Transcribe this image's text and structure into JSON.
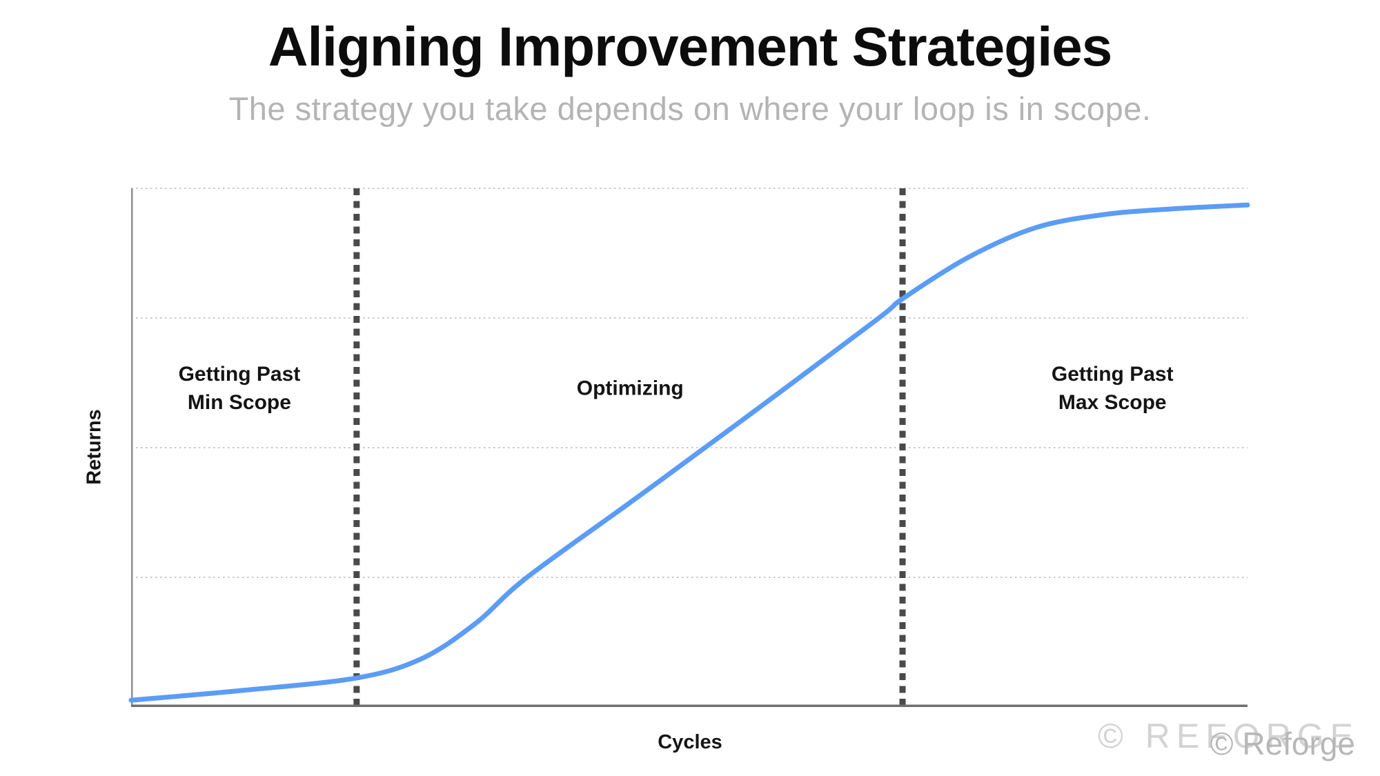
{
  "slide": {
    "title": "Aligning Improvement Strategies",
    "subtitle": "The strategy you take depends on where your loop is in scope."
  },
  "watermark": {
    "spaced_text": "© REFORGE",
    "overlay_text": "© Reforge"
  },
  "chart_data": {
    "type": "line",
    "title": "Aligning Improvement Strategies",
    "subtitle": "The strategy you take depends on where your loop is in scope.",
    "xlabel": "Cycles",
    "ylabel": "Returns",
    "axis_tick_labels_shown": false,
    "grid": "horizontal-dotted",
    "x_range_pct": [
      0,
      100
    ],
    "y_range_pct": [
      0,
      100
    ],
    "y_gridlines_pct": [
      25,
      50,
      75,
      100
    ],
    "style": {
      "gridline_color": "#c9c9c9",
      "divider_color": "#4a4a4a",
      "y_axis_color": "#8e8e8e",
      "x_axis_color": "#6f6f6f",
      "label_color": "#141414"
    },
    "series": [
      {
        "name": "Returns S-curve",
        "color": "#5b9cf6",
        "stroke_width": 7,
        "points_pct": [
          [
            0,
            1.3
          ],
          [
            10,
            3.2
          ],
          [
            20.2,
            5.6
          ],
          [
            26,
            9.3
          ],
          [
            30.9,
            16.2
          ],
          [
            35.4,
            24.9
          ],
          [
            45,
            39.9
          ],
          [
            55,
            55.7
          ],
          [
            66.8,
            74.7
          ],
          [
            69.1,
            78.7
          ],
          [
            75,
            86.7
          ],
          [
            81,
            92.4
          ],
          [
            87,
            94.9
          ],
          [
            93,
            96.0
          ],
          [
            100,
            96.8
          ]
        ]
      }
    ],
    "dividers_x_pct": [
      20.2,
      69.1
    ],
    "regions": [
      {
        "label": "Getting Past Min Scope",
        "label_lines": [
          "Getting Past",
          "Min Scope"
        ],
        "x_start_pct": 0,
        "x_end_pct": 20.2,
        "label_x_pct": 9.7
      },
      {
        "label": "Optimizing",
        "label_lines": [
          "Optimizing"
        ],
        "x_start_pct": 20.2,
        "x_end_pct": 69.1,
        "label_x_pct": 44.7
      },
      {
        "label": "Getting Past Max Scope",
        "label_lines": [
          "Getting Past",
          "Max Scope"
        ],
        "x_start_pct": 69.1,
        "x_end_pct": 100,
        "label_x_pct": 87.9
      }
    ],
    "legend": "none"
  }
}
